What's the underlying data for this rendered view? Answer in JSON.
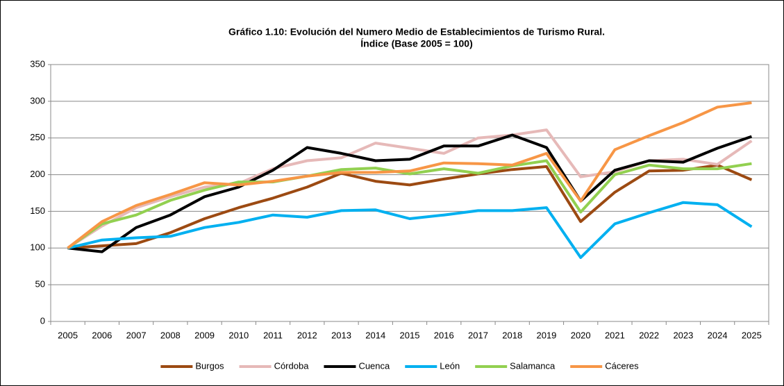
{
  "chart_data": {
    "type": "line",
    "title": "Gráfico 1.10: Evolución del Numero Medio de Establecimientos de Turismo Rural.",
    "subtitle": "Índice (Base 2005 = 100)",
    "categories": [
      "2005",
      "2006",
      "2007",
      "2008",
      "2009",
      "2010",
      "2011",
      "2012",
      "2013",
      "2014",
      "2015",
      "2016",
      "2017",
      "2018",
      "2019",
      "2020",
      "2021",
      "2022",
      "2023",
      "2024",
      "2025"
    ],
    "series": [
      {
        "name": "Burgos",
        "color": "#9c4a12",
        "values": [
          100,
          103,
          106,
          121,
          140,
          155,
          168,
          183,
          202,
          191,
          186,
          194,
          201,
          207,
          211,
          136,
          176,
          205,
          206,
          213,
          193
        ]
      },
      {
        "name": "Córdoba",
        "color": "#e6b9b8",
        "values": [
          100,
          130,
          155,
          170,
          183,
          188,
          208,
          219,
          223,
          243,
          236,
          229,
          250,
          254,
          261,
          197,
          204,
          219,
          221,
          214,
          246
        ]
      },
      {
        "name": "Cuenca",
        "color": "#000000",
        "values": [
          100,
          95,
          128,
          145,
          170,
          183,
          206,
          237,
          229,
          219,
          221,
          239,
          239,
          254,
          237,
          164,
          206,
          219,
          217,
          236,
          252
        ]
      },
      {
        "name": "León",
        "color": "#00b0f0",
        "values": [
          100,
          111,
          114,
          116,
          128,
          135,
          145,
          142,
          151,
          152,
          140,
          145,
          151,
          151,
          155,
          87,
          133,
          148,
          162,
          159,
          129
        ]
      },
      {
        "name": "Salamanca",
        "color": "#92d050",
        "values": [
          100,
          133,
          145,
          165,
          179,
          190,
          190,
          198,
          207,
          209,
          201,
          208,
          202,
          212,
          219,
          149,
          200,
          213,
          208,
          208,
          215
        ]
      },
      {
        "name": "Cáceres",
        "color": "#f79646",
        "values": [
          100,
          136,
          158,
          173,
          189,
          186,
          191,
          198,
          203,
          203,
          205,
          216,
          215,
          213,
          229,
          164,
          234,
          253,
          271,
          292,
          298
        ]
      }
    ],
    "ylim": [
      0,
      350
    ],
    "yticks": [
      0,
      50,
      100,
      150,
      200,
      250,
      300,
      350
    ],
    "grid": true,
    "legend": "bottom"
  }
}
